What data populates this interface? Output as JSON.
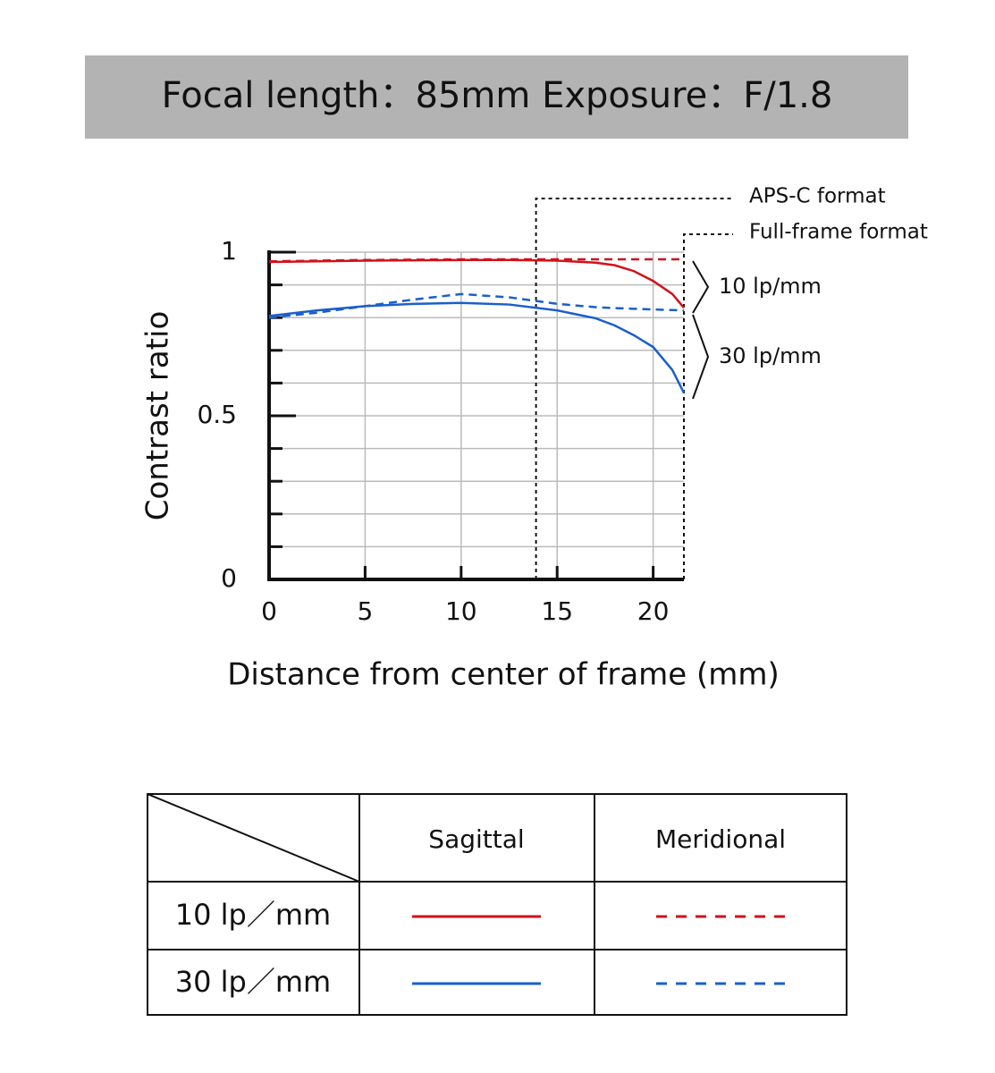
{
  "chart_data": {
    "type": "line",
    "title": "Focal length：85mm  Exposure：F/1.8",
    "xlabel": "Distance from center of frame (mm)",
    "ylabel": "Contrast ratio",
    "x": [
      0,
      2.5,
      5,
      7.5,
      10,
      12.5,
      15,
      17,
      18,
      19,
      20,
      21,
      21.6
    ],
    "series": [
      {
        "color": "#d0121b",
        "dashed": false,
        "values": [
          0.97,
          0.972,
          0.974,
          0.975,
          0.976,
          0.976,
          0.974,
          0.968,
          0.96,
          0.942,
          0.912,
          0.872,
          0.83
        ]
      },
      {
        "color": "#d0121b",
        "dashed": true,
        "values": [
          0.972,
          0.974,
          0.976,
          0.977,
          0.978,
          0.978,
          0.978,
          0.978,
          0.978,
          0.978,
          0.978,
          0.978,
          0.978
        ]
      },
      {
        "color": "#1a5fcc",
        "dashed": false,
        "values": [
          0.805,
          0.822,
          0.835,
          0.842,
          0.845,
          0.84,
          0.822,
          0.798,
          0.776,
          0.746,
          0.71,
          0.64,
          0.57
        ]
      },
      {
        "color": "#1a5fcc",
        "dashed": true,
        "values": [
          0.8,
          0.815,
          0.835,
          0.855,
          0.872,
          0.862,
          0.842,
          0.832,
          0.829,
          0.827,
          0.825,
          0.823,
          0.822
        ]
      }
    ],
    "xlim": [
      0,
      21.6
    ],
    "xticks": [
      0,
      5,
      10,
      15,
      20
    ],
    "ylim": [
      0,
      1
    ],
    "yticks": [
      0,
      0.5,
      1
    ],
    "yminorticks": [
      0.1,
      0.2,
      0.3,
      0.4,
      0.6,
      0.7,
      0.8,
      0.9
    ],
    "grid": true,
    "formats": [
      {
        "label": "APS-C format",
        "x": 13.9
      },
      {
        "label": "Full-frame format",
        "x": 21.6
      }
    ],
    "brackets": [
      "10 lp/mm",
      "30 lp/mm"
    ],
    "legend_table": {
      "columns": [
        "Sagittal",
        "Meridional"
      ],
      "rows": [
        "10 lp／mm",
        "30 lp／mm"
      ]
    }
  }
}
